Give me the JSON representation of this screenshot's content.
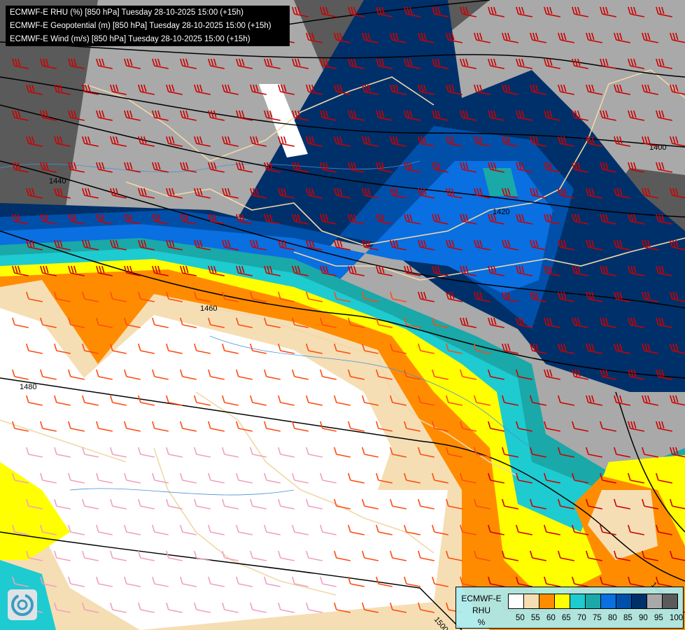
{
  "header": {
    "lines": [
      "ECMWF-E RHU (%) [850 hPa] Tuesday 28-10-2025 15:00 (+15h)",
      "ECMWF-E Geopotential (m) [850 hPa] Tuesday 28-10-2025 15:00 (+15h)",
      "ECMWF-E Wind (m/s) [850 hPa] Tuesday 28-10-2025 15:00 (+15h)"
    ]
  },
  "legend": {
    "title_line1": "ECMWF-E",
    "title_line2": "RHU",
    "unit": "%",
    "colors": [
      "#ffffff",
      "#f5deb3",
      "#ff8c00",
      "#ffff00",
      "#1ecbd0",
      "#1aa8a8",
      "#0a6fe0",
      "#0050aa",
      "#00306a",
      "#a9a9a9",
      "#5a5a5a"
    ],
    "ticks": [
      "50",
      "55",
      "60",
      "65",
      "70",
      "75",
      "80",
      "85",
      "90",
      "95",
      "100"
    ]
  },
  "contour_labels": [
    "1400",
    "1420",
    "1440",
    "1460",
    "1480",
    "1500",
    "1440"
  ],
  "logo": "ECMWF logo"
}
